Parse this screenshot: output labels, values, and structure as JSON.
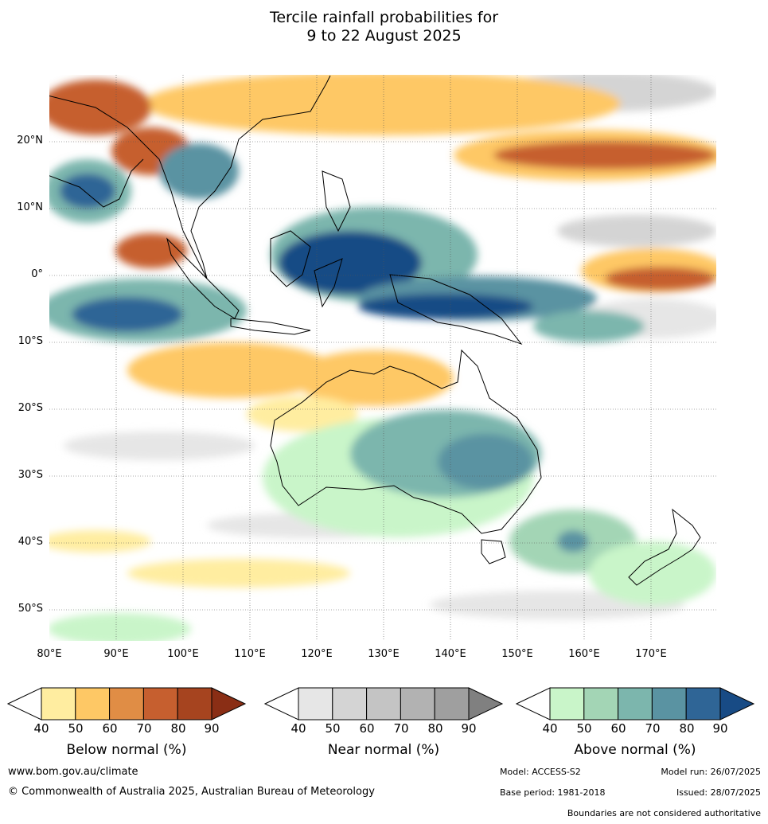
{
  "title_line1": "Tercile rainfall probabilities for",
  "title_line2": "9 to 22 August 2025",
  "lat_labels": [
    "20°N",
    "10°N",
    "0°",
    "10°S",
    "20°S",
    "30°S",
    "40°S",
    "50°S"
  ],
  "lon_labels": [
    "80°E",
    "90°E",
    "100°E",
    "110°E",
    "120°E",
    "130°E",
    "140°E",
    "150°E",
    "160°E",
    "170°E"
  ],
  "colorbars": [
    {
      "name": "Below normal (%)",
      "ticks": [
        "40",
        "50",
        "60",
        "70",
        "80",
        "90"
      ],
      "colors": [
        "#ffeda0",
        "#fec865",
        "#e08d45",
        "#c65f2f",
        "#a6441f",
        "#8a2e15"
      ]
    },
    {
      "name": "Near normal (%)",
      "ticks": [
        "40",
        "50",
        "60",
        "70",
        "80",
        "90"
      ],
      "colors": [
        "#e6e6e6",
        "#d4d4d4",
        "#c4c4c4",
        "#b2b2b2",
        "#9f9f9f",
        "#808080"
      ]
    },
    {
      "name": "Above normal (%)",
      "ticks": [
        "40",
        "50",
        "60",
        "70",
        "80",
        "90"
      ],
      "colors": [
        "#c9f5c9",
        "#a3d5b5",
        "#7cb6ad",
        "#5a93a2",
        "#2f6596",
        "#184b85"
      ]
    }
  ],
  "footer": {
    "website": "www.bom.gov.au/climate",
    "copyright": "© Commonwealth of Australia 2025, Australian Bureau of Meteorology",
    "model": "Model: ACCESS-S2",
    "model_run": "Model run: 26/07/2025",
    "base_period": "Base period: 1981-2018",
    "issued": "Issued: 28/07/2025",
    "disclaimer": "Boundaries are not considered authoritative"
  }
}
